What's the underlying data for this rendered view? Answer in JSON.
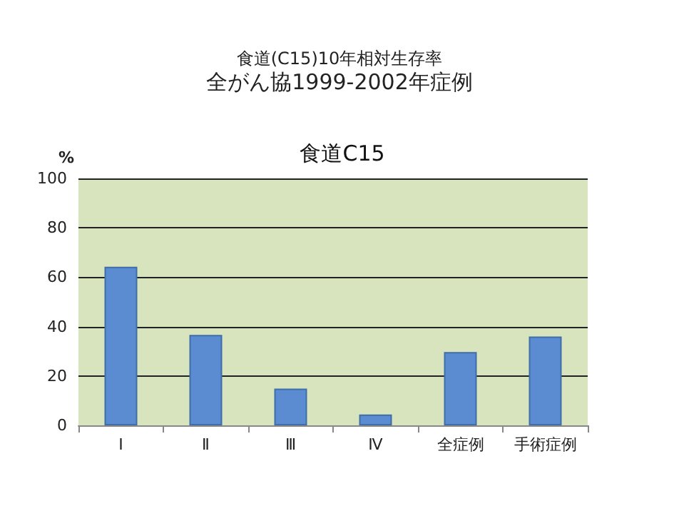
{
  "chart_data": {
    "type": "bar",
    "title": "食道(C15)10年相対生存率",
    "subtitle": "全がん協1999-2002年症例",
    "annotations": [
      "食道C15"
    ],
    "ylabel": "%",
    "categories": [
      "Ⅰ",
      "Ⅱ",
      "Ⅲ",
      "Ⅳ",
      "全症例",
      "手術症例"
    ],
    "values": [
      64.2,
      36.6,
      14.9,
      4.4,
      29.7,
      36.0
    ],
    "color": "#5b8bd0",
    "ylim": [
      0,
      100
    ],
    "yticks": [
      0,
      20,
      40,
      60,
      80,
      100
    ],
    "grid": true
  }
}
